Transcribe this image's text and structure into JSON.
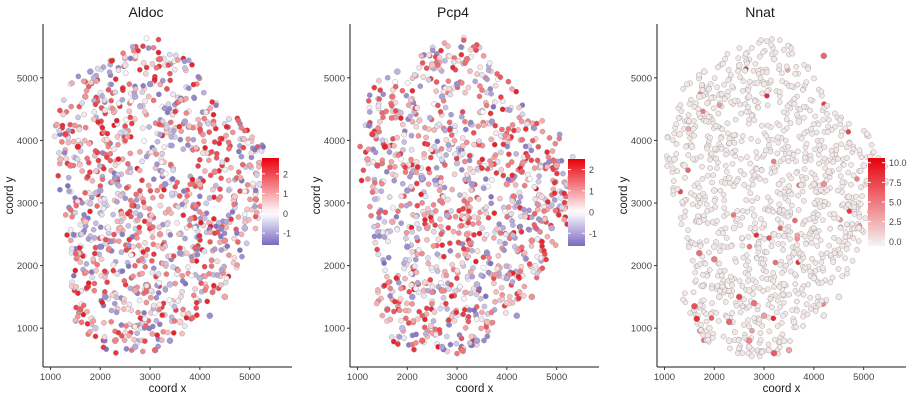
{
  "chart_data": [
    {
      "type": "scatter",
      "title": "Aldoc",
      "xlabel": "coord x",
      "ylabel": "coord y",
      "xlim": [
        850,
        5850
      ],
      "ylim": [
        380,
        5860
      ],
      "x_ticks": [
        1000,
        2000,
        3000,
        4000,
        5000
      ],
      "y_ticks": [
        1000,
        2000,
        3000,
        4000,
        5000
      ],
      "grid": false,
      "legend": "right",
      "colorbar": {
        "min": -1.6,
        "max": 2.8,
        "ticks": [
          -1,
          0,
          1,
          2
        ],
        "low_color": "#7b68c2",
        "mid_color": "#ffffff",
        "high_color": "#e8000b"
      },
      "point_stroke": "#8a8a8a",
      "points": [
        [
          1300,
          4100,
          2.1
        ],
        [
          1400,
          3600,
          1.5
        ],
        [
          1550,
          3900,
          2.4
        ],
        [
          1700,
          4700,
          1.2
        ],
        [
          1200,
          3700,
          0.8
        ],
        [
          2300,
          3400,
          -1.1
        ],
        [
          3300,
          3300,
          -1.2
        ],
        [
          4000,
          3300,
          0.9
        ],
        [
          4300,
          3500,
          1.4
        ],
        [
          4700,
          3100,
          0.6
        ],
        [
          5000,
          3600,
          1.1
        ],
        [
          5200,
          3300,
          -0.4
        ],
        [
          4500,
          2400,
          1.3
        ],
        [
          4900,
          2600,
          -0.8
        ],
        [
          3700,
          4300,
          -1.0
        ],
        [
          3000,
          4900,
          -1.2
        ],
        [
          3200,
          5300,
          1.6
        ],
        [
          2500,
          5200,
          0.4
        ],
        [
          2700,
          4700,
          -0.9
        ],
        [
          1800,
          5100,
          -1.1
        ],
        [
          2000,
          3200,
          -1.0
        ],
        [
          1700,
          2700,
          0.7
        ],
        [
          2000,
          2300,
          -1.3
        ],
        [
          2400,
          2600,
          0.9
        ],
        [
          2800,
          2800,
          -1.0
        ],
        [
          3200,
          2500,
          1.2
        ],
        [
          3600,
          2200,
          -1.1
        ],
        [
          3400,
          1700,
          -0.7
        ],
        [
          2700,
          1600,
          1.0
        ],
        [
          2100,
          1500,
          -1.2
        ],
        [
          1600,
          1300,
          1.8
        ],
        [
          1900,
          1000,
          -0.6
        ],
        [
          2300,
          800,
          1.4
        ],
        [
          2700,
          700,
          -0.9
        ],
        [
          3100,
          650,
          1.7
        ],
        [
          3400,
          800,
          -1.1
        ],
        [
          3600,
          1100,
          0.5
        ],
        [
          4200,
          1200,
          -1.2
        ],
        [
          4500,
          1500,
          1.0
        ],
        [
          4000,
          1800,
          -0.8
        ]
      ]
    },
    {
      "type": "scatter",
      "title": "Pcp4",
      "xlabel": "coord x",
      "ylabel": "coord y",
      "xlim": [
        850,
        5850
      ],
      "ylim": [
        380,
        5860
      ],
      "x_ticks": [
        1000,
        2000,
        3000,
        4000,
        5000
      ],
      "y_ticks": [
        1000,
        2000,
        3000,
        4000,
        5000
      ],
      "grid": false,
      "legend": "right",
      "colorbar": {
        "min": -1.6,
        "max": 2.5,
        "ticks": [
          -1,
          0,
          1,
          2
        ],
        "low_color": "#7b68c2",
        "mid_color": "#ffffff",
        "high_color": "#e8000b"
      },
      "point_stroke": "#8a8a8a",
      "points": [
        [
          1300,
          4100,
          1.9
        ],
        [
          1400,
          3600,
          1.7
        ],
        [
          1550,
          3900,
          2.2
        ],
        [
          1700,
          4700,
          1.4
        ],
        [
          1200,
          3700,
          1.0
        ],
        [
          2300,
          3400,
          -1.0
        ],
        [
          3300,
          3300,
          -1.1
        ],
        [
          4000,
          3300,
          1.1
        ],
        [
          4300,
          3500,
          1.6
        ],
        [
          4700,
          3100,
          0.4
        ],
        [
          5000,
          3600,
          0.9
        ],
        [
          5200,
          3300,
          -0.6
        ],
        [
          4500,
          2400,
          1.2
        ],
        [
          4900,
          2600,
          -0.9
        ],
        [
          3700,
          4300,
          -1.1
        ],
        [
          3000,
          4900,
          -1.2
        ],
        [
          3200,
          5300,
          1.4
        ],
        [
          2500,
          5200,
          0.6
        ],
        [
          2700,
          4700,
          -1.0
        ],
        [
          1800,
          5100,
          -0.8
        ],
        [
          2000,
          3200,
          -1.1
        ],
        [
          1700,
          2700,
          0.9
        ],
        [
          2000,
          2300,
          -1.2
        ],
        [
          2400,
          2600,
          1.1
        ],
        [
          2800,
          2800,
          -0.9
        ],
        [
          3200,
          2500,
          1.0
        ],
        [
          3600,
          2200,
          -1.2
        ],
        [
          3400,
          1700,
          -0.8
        ],
        [
          2700,
          1600,
          1.2
        ],
        [
          2100,
          1500,
          -1.1
        ],
        [
          1600,
          1300,
          1.6
        ],
        [
          1900,
          1000,
          -0.7
        ],
        [
          2300,
          800,
          1.5
        ],
        [
          2700,
          700,
          -1.0
        ],
        [
          3100,
          650,
          1.4
        ],
        [
          3400,
          800,
          -1.0
        ],
        [
          3600,
          1100,
          0.7
        ],
        [
          4200,
          1200,
          -1.1
        ],
        [
          4500,
          1500,
          1.1
        ],
        [
          4000,
          1800,
          -0.9
        ]
      ]
    },
    {
      "type": "scatter",
      "title": "Nnat",
      "xlabel": "coord x",
      "ylabel": "coord y",
      "xlim": [
        850,
        5850
      ],
      "ylim": [
        380,
        5860
      ],
      "x_ticks": [
        1000,
        2000,
        3000,
        4000,
        5000
      ],
      "y_ticks": [
        1000,
        2000,
        3000,
        4000,
        5000
      ],
      "grid": false,
      "legend": "right",
      "colorbar": {
        "min": -0.6,
        "max": 10.6,
        "ticks": [
          0.0,
          2.5,
          5.0,
          7.5,
          10.0
        ],
        "tick_labels": [
          "0.0",
          "2.5",
          "5.0",
          "7.5",
          "10.0"
        ],
        "low_color": "#f4f4f4",
        "high_color": "#e8000b"
      },
      "point_stroke": "#8a8a8a",
      "points": [
        [
          1300,
          4100,
          0
        ],
        [
          1400,
          3600,
          0
        ],
        [
          1550,
          3900,
          0
        ],
        [
          1700,
          4700,
          0
        ],
        [
          1200,
          3700,
          0
        ],
        [
          2300,
          3400,
          0
        ],
        [
          3300,
          3300,
          0
        ],
        [
          4000,
          3300,
          0
        ],
        [
          4300,
          3500,
          0
        ],
        [
          4700,
          3100,
          0
        ],
        [
          5000,
          3600,
          0
        ],
        [
          5200,
          3300,
          0
        ],
        [
          4500,
          2400,
          0
        ],
        [
          4900,
          2600,
          0
        ],
        [
          3700,
          4300,
          0
        ],
        [
          3000,
          4900,
          0
        ],
        [
          3200,
          5300,
          0
        ],
        [
          2500,
          5200,
          0
        ],
        [
          2700,
          4700,
          0
        ],
        [
          1800,
          5100,
          0
        ],
        [
          2000,
          3200,
          0
        ],
        [
          1700,
          2700,
          0
        ],
        [
          2000,
          2300,
          0
        ],
        [
          2400,
          2600,
          0
        ],
        [
          2800,
          2800,
          0
        ],
        [
          3200,
          2500,
          0
        ],
        [
          3600,
          2200,
          0
        ],
        [
          3400,
          1700,
          0
        ],
        [
          2700,
          1600,
          0
        ],
        [
          2100,
          1500,
          0
        ],
        [
          1600,
          1300,
          0
        ],
        [
          1900,
          1000,
          0
        ],
        [
          2300,
          800,
          0
        ],
        [
          2700,
          700,
          0
        ],
        [
          3100,
          650,
          0
        ],
        [
          3400,
          800,
          0
        ],
        [
          3600,
          1100,
          0
        ],
        [
          4200,
          1200,
          0
        ],
        [
          4500,
          1500,
          0
        ],
        [
          4000,
          1800,
          0
        ],
        [
          1650,
          1150,
          8.5
        ],
        [
          2500,
          1500,
          7.5
        ],
        [
          2300,
          1100,
          6.0
        ],
        [
          2000,
          2100,
          5.0
        ],
        [
          2700,
          800,
          4.5
        ],
        [
          3200,
          600,
          6.5
        ],
        [
          3000,
          1200,
          3.5
        ],
        [
          2800,
          1400,
          5.5
        ],
        [
          4200,
          5350,
          6.0
        ],
        [
          4200,
          3300,
          4.0
        ],
        [
          1700,
          2200,
          5.5
        ],
        [
          1600,
          1350,
          7.0
        ],
        [
          3500,
          650,
          3.0
        ]
      ]
    }
  ]
}
